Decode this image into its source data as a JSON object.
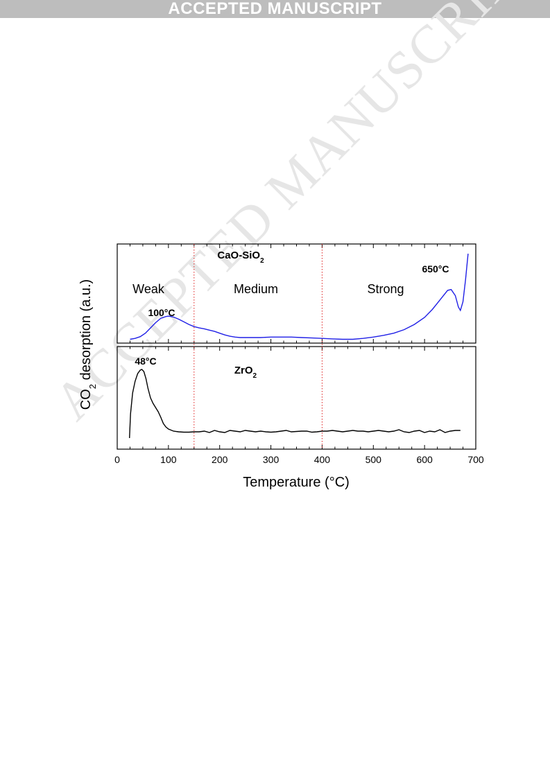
{
  "banner": "ACCEPTED MANUSCRIPT",
  "watermark": "ACCEPTED MANUSCRIPT",
  "chart_data": [
    {
      "type": "line",
      "panel": "top",
      "title": "CaO-SiO2",
      "region_labels": [
        "Weak",
        "Medium",
        "Strong"
      ],
      "region_boundaries": [
        150,
        400
      ],
      "annotations": [
        {
          "text": "100°C",
          "x": 100
        },
        {
          "text": "650°C",
          "x": 650
        }
      ],
      "series": [
        {
          "color": "#1f1fe6",
          "x": [
            25,
            35,
            45,
            55,
            65,
            75,
            85,
            95,
            100,
            110,
            120,
            130,
            140,
            150,
            160,
            170,
            180,
            190,
            200,
            210,
            220,
            230,
            240,
            250,
            260,
            280,
            300,
            320,
            340,
            360,
            380,
            400,
            420,
            440,
            460,
            480,
            500,
            520,
            540,
            560,
            580,
            600,
            615,
            630,
            645,
            652,
            660,
            666,
            670,
            675,
            680,
            685
          ],
          "values": [
            0.02,
            0.03,
            0.05,
            0.09,
            0.15,
            0.21,
            0.26,
            0.28,
            0.285,
            0.275,
            0.25,
            0.22,
            0.19,
            0.165,
            0.15,
            0.14,
            0.125,
            0.11,
            0.09,
            0.07,
            0.055,
            0.045,
            0.04,
            0.04,
            0.04,
            0.04,
            0.045,
            0.045,
            0.045,
            0.04,
            0.035,
            0.03,
            0.025,
            0.02,
            0.02,
            0.03,
            0.045,
            0.065,
            0.09,
            0.13,
            0.19,
            0.27,
            0.36,
            0.47,
            0.58,
            0.59,
            0.52,
            0.39,
            0.35,
            0.45,
            0.7,
            1.0
          ]
        }
      ],
      "xlim": [
        0,
        700
      ]
    },
    {
      "type": "line",
      "panel": "bottom",
      "title": "ZrO2",
      "annotations": [
        {
          "text": "48°C",
          "x": 48
        }
      ],
      "series": [
        {
          "color": "#000000",
          "x": [
            24,
            26,
            30,
            35,
            40,
            45,
            48,
            52,
            56,
            60,
            65,
            70,
            75,
            80,
            85,
            90,
            95,
            100,
            110,
            120,
            130,
            140,
            150,
            160,
            170,
            180,
            190,
            200,
            210,
            220,
            230,
            240,
            250,
            260,
            270,
            280,
            290,
            300,
            310,
            320,
            330,
            340,
            350,
            360,
            370,
            380,
            390,
            400,
            410,
            420,
            430,
            440,
            450,
            460,
            470,
            480,
            490,
            500,
            510,
            520,
            530,
            540,
            550,
            560,
            570,
            580,
            590,
            600,
            610,
            620,
            630,
            640,
            650,
            660,
            670
          ],
          "values": [
            0.0,
            0.35,
            0.65,
            0.82,
            0.93,
            0.98,
            0.99,
            0.96,
            0.86,
            0.72,
            0.58,
            0.5,
            0.44,
            0.38,
            0.3,
            0.21,
            0.16,
            0.13,
            0.1,
            0.09,
            0.085,
            0.085,
            0.09,
            0.09,
            0.1,
            0.08,
            0.11,
            0.09,
            0.08,
            0.11,
            0.1,
            0.09,
            0.11,
            0.1,
            0.09,
            0.1,
            0.09,
            0.085,
            0.09,
            0.1,
            0.11,
            0.09,
            0.095,
            0.1,
            0.1,
            0.085,
            0.09,
            0.1,
            0.1,
            0.11,
            0.1,
            0.09,
            0.1,
            0.11,
            0.1,
            0.1,
            0.09,
            0.1,
            0.11,
            0.1,
            0.09,
            0.1,
            0.12,
            0.09,
            0.08,
            0.1,
            0.11,
            0.08,
            0.1,
            0.09,
            0.12,
            0.08,
            0.1,
            0.11,
            0.11
          ]
        }
      ],
      "xlim": [
        0,
        700
      ],
      "xticks": [
        0,
        100,
        200,
        300,
        400,
        500,
        600,
        700
      ],
      "xlabel": "Temperature (°C)",
      "ylabel": "CO2 desorption (a.u.)"
    }
  ]
}
